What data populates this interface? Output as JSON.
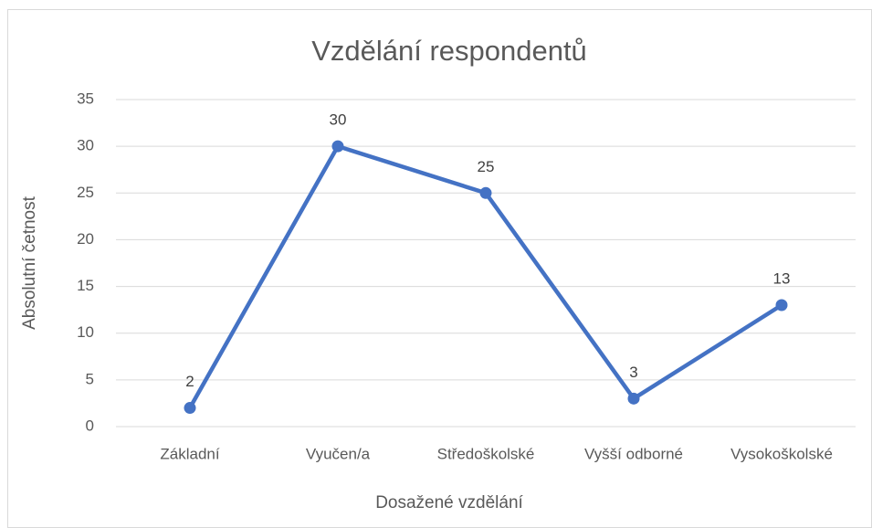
{
  "chart_data": {
    "type": "line",
    "title": "Vzdělání respondentů",
    "x_label": "Dosažené vzdělání",
    "y_label": "Absolutní četnost",
    "categories": [
      "Základní",
      "Vyučen/a",
      "Středoškolské",
      "Vyšší odborné",
      "Vysokoškolské"
    ],
    "values": [
      2,
      30,
      25,
      3,
      13
    ],
    "color": "#4472c4",
    "ylim": [
      0,
      35
    ],
    "yticks": [
      0,
      5,
      10,
      15,
      20,
      25,
      30,
      35
    ],
    "grid": true
  }
}
